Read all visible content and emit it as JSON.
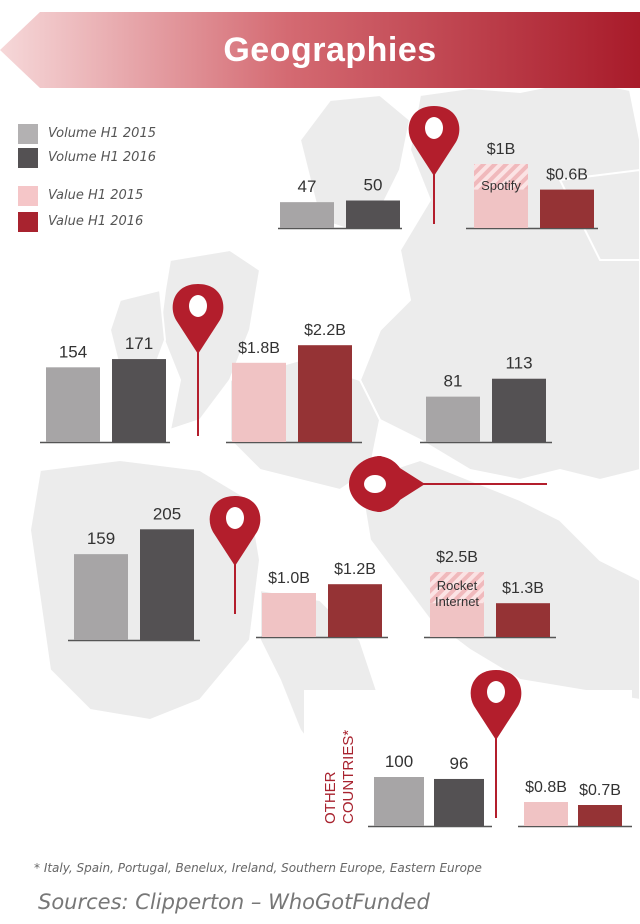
{
  "title": "Geographies",
  "colors": {
    "volume_2015": "#a7a5a6",
    "volume_2016": "#545153",
    "value_2015": "#f0c3c4",
    "value_2016": "#953335",
    "accent": "#b31e2c",
    "map": "#ececec"
  },
  "legend": [
    {
      "label": "Volume H1 2015",
      "color": "#b3b1b2"
    },
    {
      "label": "Volume H1 2016",
      "color": "#545153"
    },
    {
      "label": "Value H1 2015",
      "color": "#f5c6c8"
    },
    {
      "label": "Value H1 2016",
      "color": "#a8232f"
    }
  ],
  "chart_data": [
    {
      "type": "bar",
      "region": "top",
      "metric": "volume",
      "categories": [
        "H1 2015",
        "H1 2016"
      ],
      "values": [
        47,
        50
      ],
      "labels": [
        "47",
        "50"
      ]
    },
    {
      "type": "bar",
      "region": "top",
      "metric": "value",
      "categories": [
        "H1 2015",
        "H1 2016"
      ],
      "values": [
        1.0,
        0.6
      ],
      "labels": [
        "$1B",
        "$0.6B"
      ],
      "annotation": "Spotify"
    },
    {
      "type": "bar",
      "region": "upper-left",
      "metric": "volume",
      "categories": [
        "H1 2015",
        "H1 2016"
      ],
      "values": [
        154,
        171
      ],
      "labels": [
        "154",
        "171"
      ]
    },
    {
      "type": "bar",
      "region": "upper-left",
      "metric": "value",
      "categories": [
        "H1 2015",
        "H1 2016"
      ],
      "values": [
        1.8,
        2.2
      ],
      "labels": [
        "$1.8B",
        "$2.2B"
      ]
    },
    {
      "type": "bar",
      "region": "right",
      "metric": "volume",
      "categories": [
        "H1 2015",
        "H1 2016"
      ],
      "values": [
        81,
        113
      ],
      "labels": [
        "81",
        "113"
      ]
    },
    {
      "type": "bar",
      "region": "lower-left",
      "metric": "volume",
      "categories": [
        "H1 2015",
        "H1 2016"
      ],
      "values": [
        159,
        205
      ],
      "labels": [
        "159",
        "205"
      ]
    },
    {
      "type": "bar",
      "region": "lower-center",
      "metric": "value",
      "categories": [
        "H1 2015",
        "H1 2016"
      ],
      "values": [
        1.0,
        1.2
      ],
      "labels": [
        "$1.0B",
        "$1.2B"
      ]
    },
    {
      "type": "bar",
      "region": "lower-right",
      "metric": "value",
      "categories": [
        "H1 2015",
        "H1 2016"
      ],
      "values": [
        2.5,
        1.3
      ],
      "labels": [
        "$2.5B",
        "$1.3B"
      ],
      "annotation": "Rocket Internet"
    },
    {
      "type": "bar",
      "region": "other",
      "metric": "volume",
      "categories": [
        "H1 2015",
        "H1 2016"
      ],
      "values": [
        100,
        96
      ],
      "labels": [
        "100",
        "96"
      ]
    },
    {
      "type": "bar",
      "region": "other",
      "metric": "value",
      "categories": [
        "H1 2015",
        "H1 2016"
      ],
      "values": [
        0.8,
        0.7
      ],
      "labels": [
        "$0.8B",
        "$0.7B"
      ]
    }
  ],
  "other_countries_label": "OTHER COUNTRIES*",
  "footnote": "* Italy, Spain, Portugal, Benelux, Ireland, Southern Europe, Eastern Europe",
  "sources": "Sources: Clipperton – WhoGotFunded"
}
